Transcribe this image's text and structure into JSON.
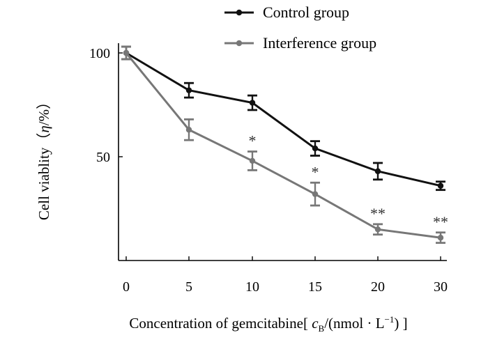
{
  "chart_data": {
    "type": "line",
    "title": "",
    "xlabel": "Concentration of gemcitabine[ c_B/(nmol · L⁻¹) ]",
    "xlabel_parts": {
      "prefix": "Concentration of gemcitabine[ ",
      "c": "c",
      "sub": "B",
      "middle": "/(nmol · L",
      "sup": "−1",
      "suffix": ") ]"
    },
    "ylabel": "Cell viablity（η/%）",
    "ylabel_parts": {
      "prefix": "Cell viablity（",
      "eta": "η",
      "suffix": "/%）"
    },
    "categories": [
      "0",
      "5",
      "10",
      "15",
      "20",
      "30"
    ],
    "ylim": [
      0,
      100
    ],
    "y_ticks": [
      "100",
      "50"
    ],
    "y_tick_values": [
      100,
      50
    ],
    "series": [
      {
        "name": "Control group",
        "color": "#111111",
        "values": [
          100,
          82,
          76,
          54,
          43,
          36
        ],
        "errors": [
          3,
          3.5,
          3.5,
          3.5,
          4,
          2
        ]
      },
      {
        "name": "Interference group",
        "color": "#777777",
        "values": [
          100,
          63,
          48,
          32,
          15,
          11
        ],
        "errors": [
          3,
          5,
          4.5,
          5.5,
          2.5,
          2.5
        ]
      }
    ],
    "annotations": [
      {
        "category": "10",
        "text": "*"
      },
      {
        "category": "15",
        "text": "*"
      },
      {
        "category": "20",
        "text": "**"
      },
      {
        "category": "30",
        "text": "**"
      }
    ],
    "legend_position": "top-right"
  }
}
